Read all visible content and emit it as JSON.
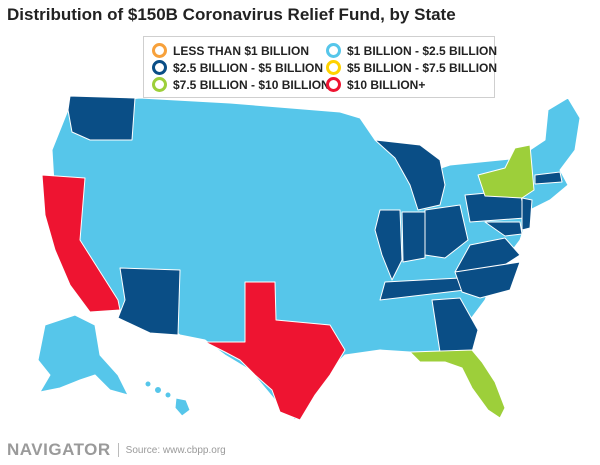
{
  "title": "Distribution of $150B Coronavirus Relief Fund, by State",
  "legend": [
    {
      "label": "LESS THAN $1 BILLION",
      "color": "#f7a13b"
    },
    {
      "label": "$1 BILLION - $2.5 BILLION",
      "color": "#56c6ea"
    },
    {
      "label": "$2.5 BILLION - $5 BILLION",
      "color": "#0a4e86"
    },
    {
      "label": "$5 BILLION - $7.5 BILLION",
      "color": "#ffd200"
    },
    {
      "label": "$7.5 BILLION - $10 BILLION",
      "color": "#9dcf3a"
    },
    {
      "label": "$10 BILLION+",
      "color": "#ee1431"
    }
  ],
  "map_colors": {
    "light_blue": "#56c6ea",
    "dark_blue": "#0a4e86",
    "red": "#ee1431",
    "green": "#9dcf3a",
    "border": "#ffffff"
  },
  "footer": {
    "brand": "NAVIGATOR",
    "source": "Source: www.cbpp.org"
  }
}
